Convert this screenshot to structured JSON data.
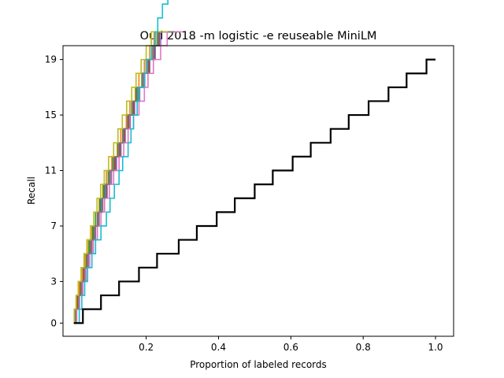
{
  "chart_data": {
    "type": "line",
    "title": "Oud 2018 -m logistic -e reuseable MiniLM",
    "xlabel": "Proportion of labeled records",
    "ylabel": "Recall",
    "xlim": [
      -0.03,
      1.05
    ],
    "ylim": [
      -0.95,
      20.0
    ],
    "x_ticks": [
      0.2,
      0.4,
      0.6,
      0.8,
      1.0
    ],
    "x_tick_labels": [
      "0.2",
      "0.4",
      "0.6",
      "0.8",
      "1.0"
    ],
    "y_ticks": [
      0,
      3,
      7,
      11,
      15,
      19
    ],
    "y_tick_labels": [
      "0",
      "3",
      "7",
      "11",
      "15",
      "19"
    ],
    "grid": false,
    "legend": "none",
    "series": [
      {
        "color": "#1f77b4",
        "x_end": [
          0.005,
          0.012,
          0.02,
          0.028,
          0.035,
          0.045,
          0.055,
          0.065,
          0.075,
          0.085,
          0.1,
          0.115,
          0.13,
          0.14,
          0.15,
          0.165,
          0.175,
          0.19,
          0.205,
          0.225,
          0.235,
          0.28
        ]
      },
      {
        "color": "#ff7f0e",
        "x_end": [
          0.002,
          0.008,
          0.015,
          0.022,
          0.03,
          0.04,
          0.05,
          0.06,
          0.07,
          0.08,
          0.09,
          0.105,
          0.12,
          0.13,
          0.145,
          0.155,
          0.17,
          0.18,
          0.195,
          0.21,
          0.222,
          0.265
        ]
      },
      {
        "color": "#2ca02c",
        "x_end": [
          0.004,
          0.01,
          0.018,
          0.026,
          0.034,
          0.042,
          0.052,
          0.06,
          0.072,
          0.082,
          0.095,
          0.108,
          0.122,
          0.135,
          0.148,
          0.16,
          0.172,
          0.188,
          0.2,
          0.215,
          0.23,
          0.275
        ]
      },
      {
        "color": "#d62728",
        "x_end": [
          0.003,
          0.011,
          0.019,
          0.027,
          0.036,
          0.046,
          0.056,
          0.066,
          0.078,
          0.088,
          0.1,
          0.112,
          0.126,
          0.138,
          0.15,
          0.163,
          0.178,
          0.19,
          0.205,
          0.218,
          0.232,
          0.27
        ]
      },
      {
        "color": "#9467bd",
        "x_end": [
          0.006,
          0.014,
          0.022,
          0.03,
          0.04,
          0.05,
          0.06,
          0.07,
          0.08,
          0.092,
          0.104,
          0.118,
          0.13,
          0.142,
          0.156,
          0.168,
          0.182,
          0.196,
          0.21,
          0.225,
          0.24,
          0.285
        ]
      },
      {
        "color": "#8c564b",
        "x_end": [
          0.004,
          0.012,
          0.02,
          0.03,
          0.038,
          0.048,
          0.058,
          0.068,
          0.078,
          0.09,
          0.1,
          0.114,
          0.128,
          0.14,
          0.152,
          0.166,
          0.18,
          0.194,
          0.208,
          0.222,
          0.236,
          0.28
        ]
      },
      {
        "color": "#e377c2",
        "x_end": [
          0.008,
          0.016,
          0.025,
          0.034,
          0.044,
          0.054,
          0.065,
          0.075,
          0.085,
          0.098,
          0.11,
          0.125,
          0.138,
          0.15,
          0.165,
          0.18,
          0.195,
          0.205,
          0.22,
          0.24,
          0.258,
          0.3
        ]
      },
      {
        "color": "#7f7f7f",
        "x_end": [
          0.005,
          0.013,
          0.021,
          0.029,
          0.037,
          0.047,
          0.057,
          0.067,
          0.077,
          0.087,
          0.098,
          0.11,
          0.124,
          0.136,
          0.148,
          0.162,
          0.176,
          0.19,
          0.204,
          0.218,
          0.232,
          0.278
        ]
      },
      {
        "color": "#bcbd22",
        "x_end": [
          0.001,
          0.006,
          0.012,
          0.02,
          0.028,
          0.036,
          0.046,
          0.055,
          0.064,
          0.074,
          0.084,
          0.096,
          0.11,
          0.122,
          0.134,
          0.146,
          0.16,
          0.172,
          0.186,
          0.2,
          0.214,
          0.26
        ]
      },
      {
        "color": "#17becf",
        "x_end": [
          0.015,
          0.022,
          0.03,
          0.038,
          0.05,
          0.06,
          0.075,
          0.09,
          0.1,
          0.112,
          0.125,
          0.135,
          0.15,
          0.158,
          0.165,
          0.175,
          0.18,
          0.195,
          0.2,
          0.215,
          0.225,
          0.232,
          0.245,
          0.26,
          0.275,
          0.29,
          0.3,
          0.32
        ]
      },
      {
        "color": "#000000",
        "x_end": [
          0.025,
          0.075,
          0.125,
          0.18,
          0.23,
          0.29,
          0.34,
          0.395,
          0.445,
          0.5,
          0.55,
          0.605,
          0.655,
          0.71,
          0.76,
          0.815,
          0.87,
          0.92,
          0.975,
          1.0
        ]
      }
    ]
  }
}
